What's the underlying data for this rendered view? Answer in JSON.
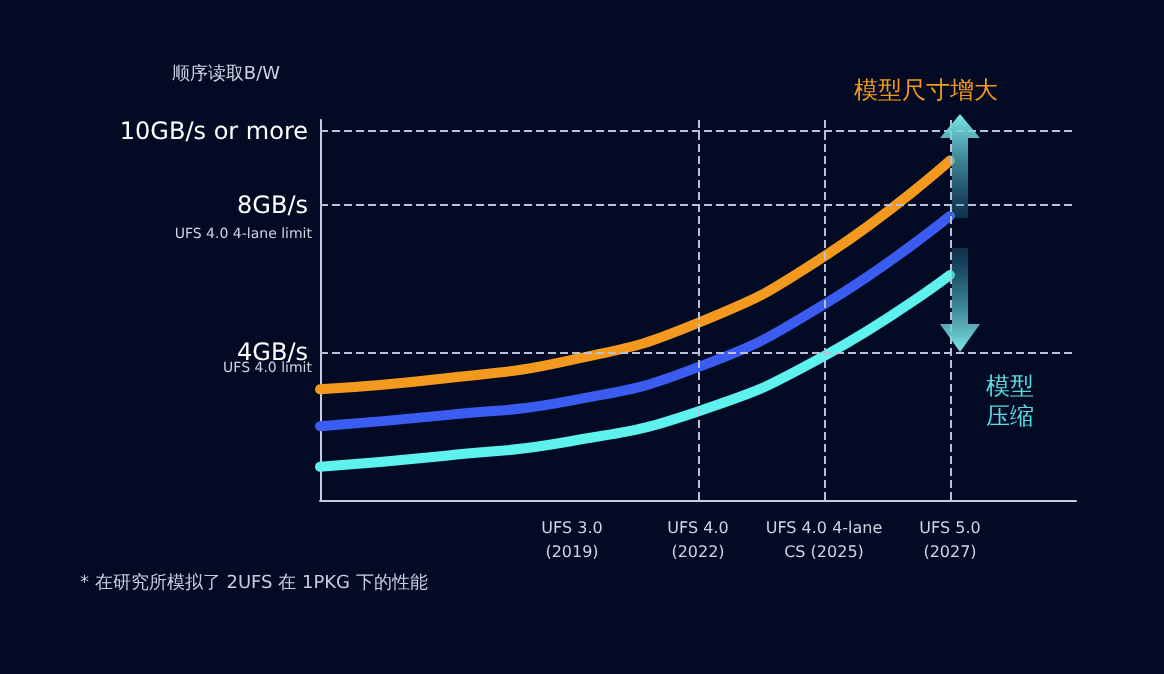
{
  "chart_data": {
    "type": "line",
    "ylabel": "顺序读取B/W",
    "categories": [
      null,
      null,
      "UFS 3.0\n(2019)",
      "UFS 4.0\n(2022)",
      "UFS 4.0 4-lane\nCS (2025)",
      "UFS 5.0\n(2027)",
      null
    ],
    "ylim": [
      0,
      10.3
    ],
    "yticks": [
      {
        "value": 4,
        "label": "4GB/s"
      },
      {
        "value": 8,
        "label": "8GB/s"
      },
      {
        "value": 10,
        "label": "10GB/s or more"
      }
    ],
    "series": [
      {
        "color": "#f39a1e",
        "values": [
          3.0,
          3.3,
          3.8,
          4.8,
          6.6,
          9.2,
          null
        ]
      },
      {
        "color": "#3a5cf0",
        "values": [
          2.0,
          2.3,
          2.7,
          3.6,
          5.3,
          7.7,
          null
        ]
      },
      {
        "color": "#5ef2ee",
        "values": [
          0.9,
          1.2,
          1.6,
          2.4,
          3.9,
          6.1,
          null
        ]
      }
    ],
    "ref_lines": [
      {
        "axis": "y",
        "value": 4,
        "line_style": "dashed"
      },
      {
        "axis": "y",
        "value": 8,
        "line_style": "dashed"
      },
      {
        "axis": "y",
        "value": 10,
        "line_style": "dashed"
      },
      {
        "axis": "x",
        "value": "UFS 4.0\n(2022)",
        "line_style": "dashed"
      },
      {
        "axis": "x",
        "value": "UFS 4.0 4-lane\nCS (2025)",
        "line_style": "dashed"
      },
      {
        "axis": "x",
        "value": "UFS 5.0\n(2027)",
        "line_style": "dashed"
      }
    ],
    "annotations": [
      {
        "text": "模型尺寸增大",
        "x": "UFS 5.0\n(2027)",
        "y": 10
      },
      {
        "text": "模型压缩",
        "x": "UFS 5.0\n(2027)",
        "y": 4
      },
      "UFS 4.0 limit",
      "UFS 4.0 4-lane limit",
      "* 在研究所模拟了 2UFS 在 1PKG 下的性能"
    ],
    "marker": "none",
    "line_style": "solid"
  }
}
